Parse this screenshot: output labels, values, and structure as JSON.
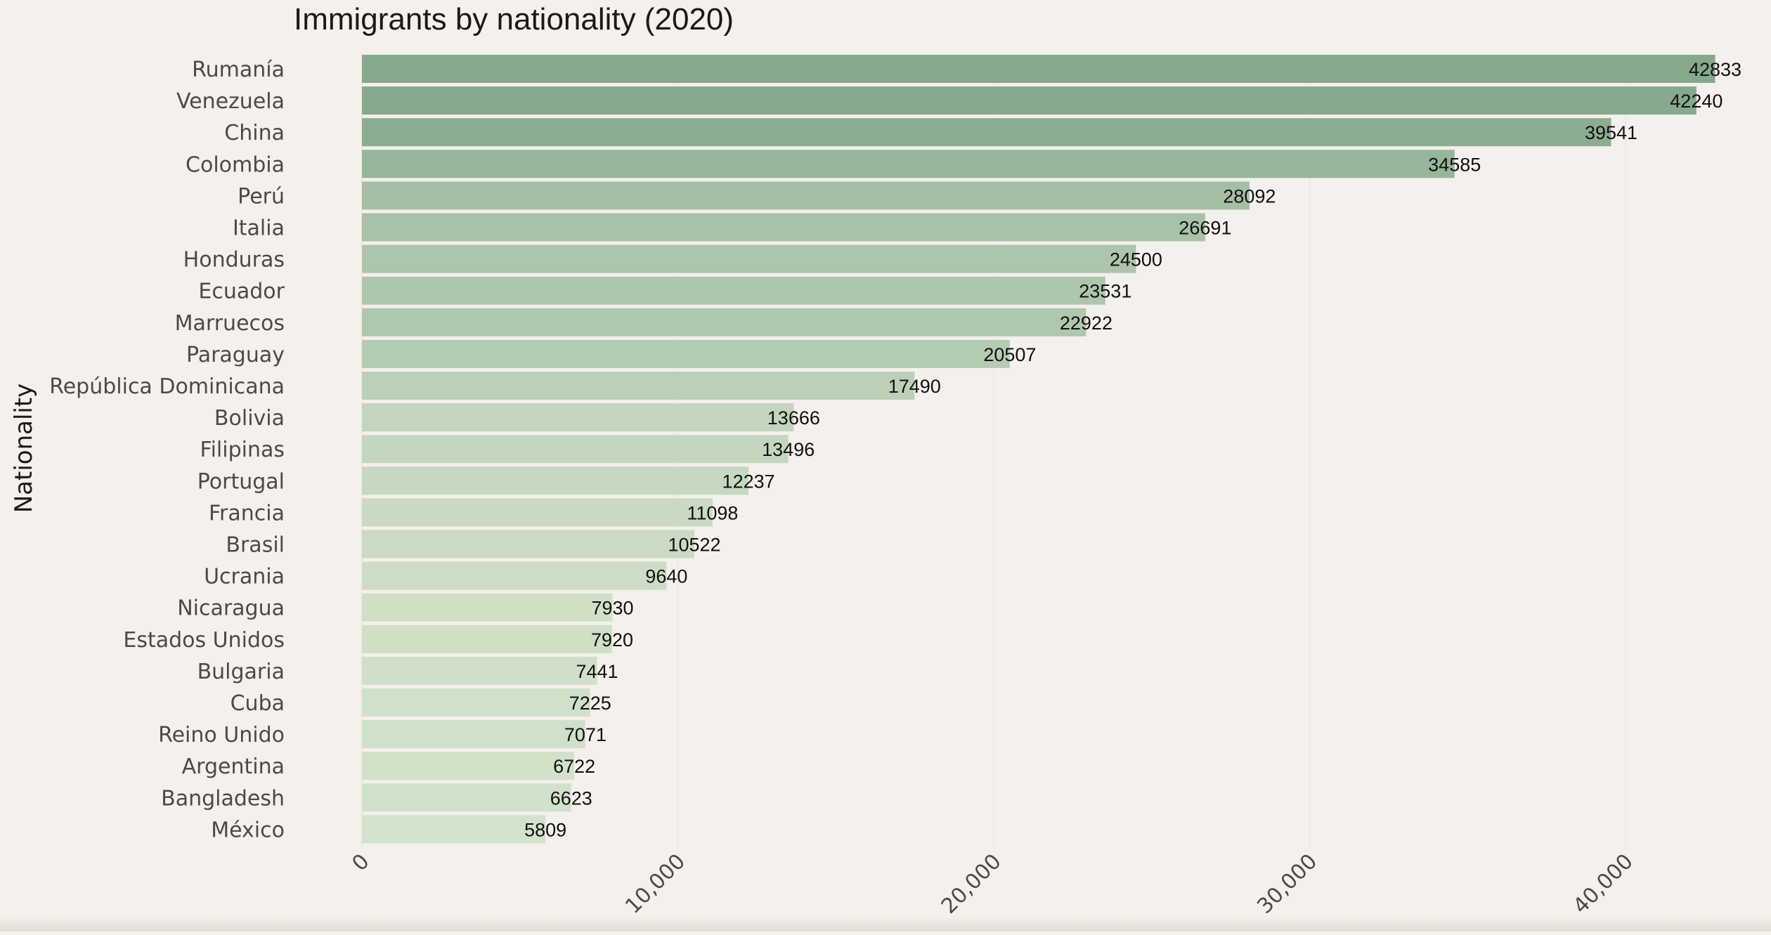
{
  "chart_data": {
    "type": "bar",
    "orientation": "horizontal",
    "title": "Immigrants by nationality (2020)",
    "xlabel": "",
    "ylabel": "Nationality",
    "xlim": [
      0,
      43000
    ],
    "grid": true,
    "x_ticks": [
      "0",
      "10,000",
      "20,000",
      "30,000",
      "40,000"
    ],
    "x_tick_values": [
      0,
      10000,
      20000,
      30000,
      40000
    ],
    "categories": [
      "Rumanía",
      "Venezuela",
      "China",
      "Colombia",
      "Perú",
      "Italia",
      "Honduras",
      "Ecuador",
      "Marruecos",
      "Paraguay",
      "República Dominicana",
      "Bolivia",
      "Filipinas",
      "Portugal",
      "Francia",
      "Brasil",
      "Ucrania",
      "Nicaragua",
      "Estados Unidos",
      "Bulgaria",
      "Cuba",
      "Reino Unido",
      "Argentina",
      "Bangladesh",
      "México"
    ],
    "values": [
      42833,
      42240,
      39541,
      34585,
      28092,
      26691,
      24500,
      23531,
      22922,
      20507,
      17490,
      13666,
      13496,
      12237,
      11098,
      10522,
      9640,
      7930,
      7920,
      7441,
      7225,
      7071,
      6722,
      6623,
      5809
    ],
    "color_scale": {
      "high": "#86a88b",
      "low": "#d3e3cb"
    }
  }
}
